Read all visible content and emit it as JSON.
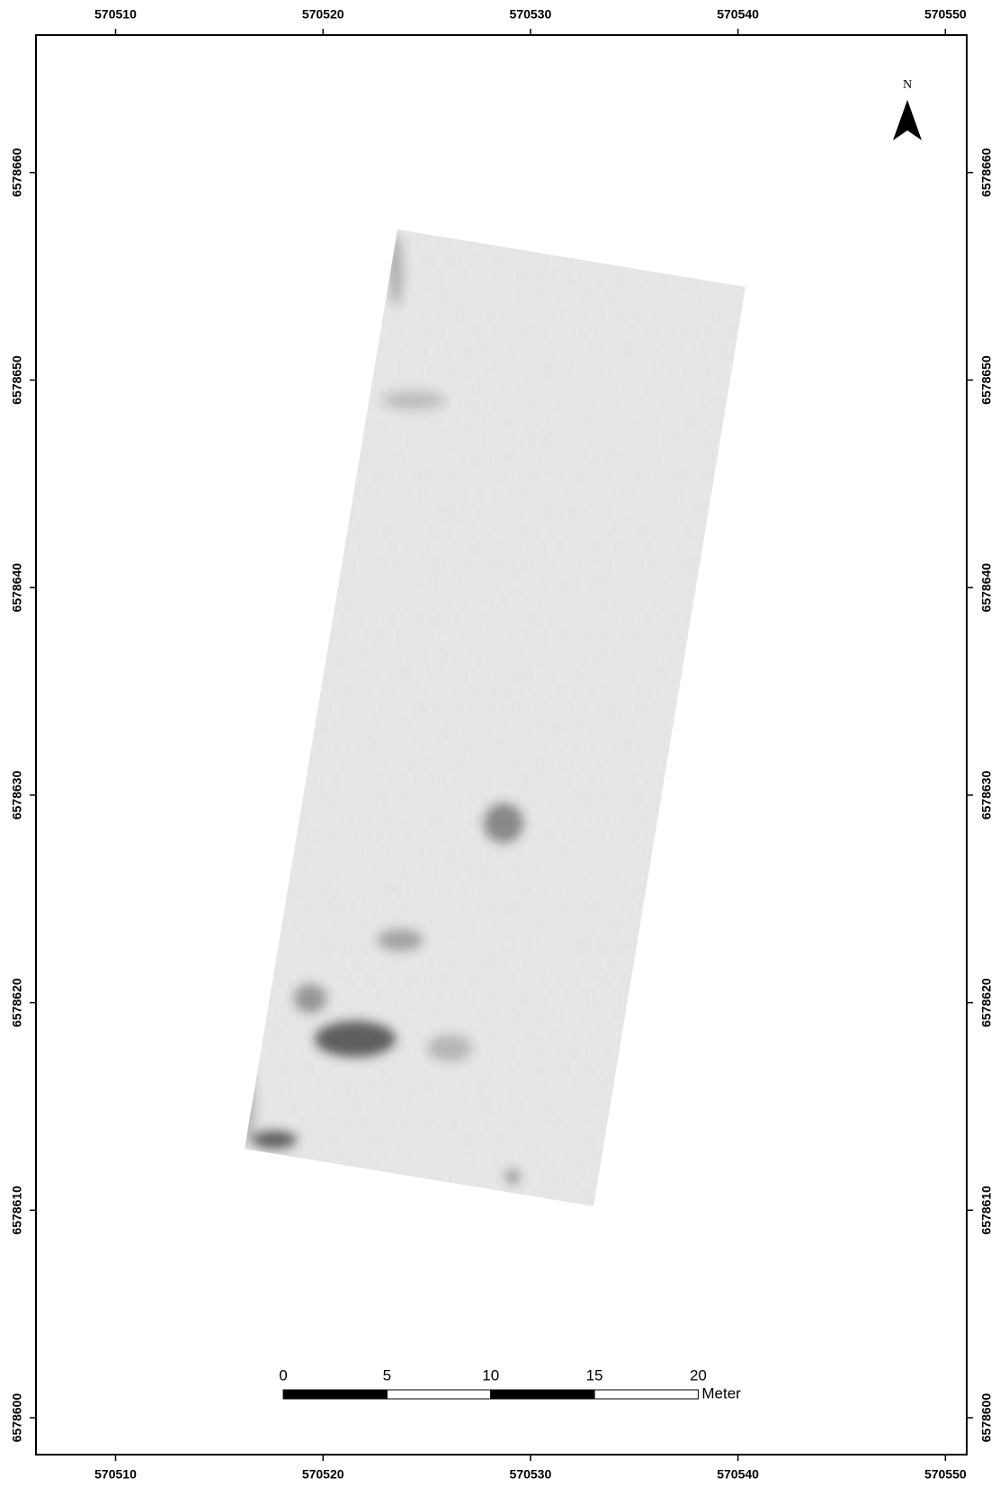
{
  "map": {
    "x_ticks": [
      570510,
      570520,
      570530,
      570540,
      570550
    ],
    "y_ticks": [
      6578600,
      6578610,
      6578620,
      6578630,
      6578640,
      6578650,
      6578660
    ],
    "north_label": "N",
    "scale_bar": {
      "ticks": [
        0,
        5,
        10,
        15,
        20
      ],
      "unit": "Meter"
    }
  }
}
